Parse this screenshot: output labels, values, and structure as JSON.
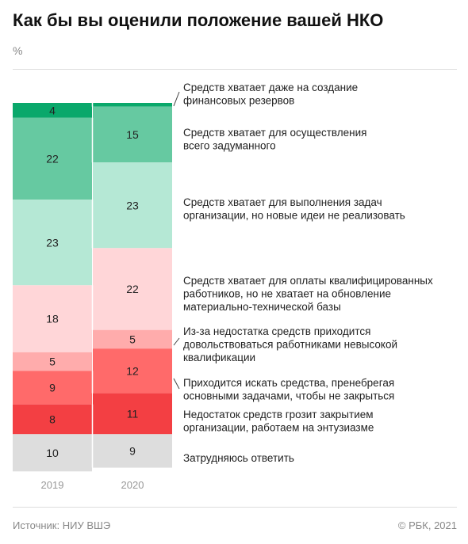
{
  "title": "Как бы вы оценили положение вашей НКО",
  "unit": "%",
  "source": "Источник: НИУ ВШЭ",
  "copyright": "© РБК, 2021",
  "colors": [
    "#0aa86b",
    "#66c9a1",
    "#b5e8d5",
    "#ffd6d8",
    "#ffacac",
    "#ff6a6a",
    "#f33f43",
    "#dddddd"
  ],
  "chart_data": {
    "type": "bar",
    "stacked": true,
    "categories": [
      "2019",
      "2020"
    ],
    "series": [
      {
        "name": "Средств хватает даже на создание финансовых резервов",
        "lines": [
          "Средств хватает даже на создание",
          "финансовых резервов"
        ],
        "values": [
          4,
          1
        ]
      },
      {
        "name": "Средств хватает для осуществления всего задуманного",
        "lines": [
          "Средств хватает для осуществления",
          "всего задуманного"
        ],
        "values": [
          22,
          15
        ]
      },
      {
        "name": "Средств хватает для выполнения задач организации, но новые идеи не реализовать",
        "lines": [
          "Средств хватает для выполнения задач",
          "организации, но новые идеи не реализовать"
        ],
        "values": [
          23,
          23
        ]
      },
      {
        "name": "Средств хватает для оплаты квалифицированных работников, но не хватает на обновление материально-технической базы",
        "lines": [
          "Средств хватает для оплаты квалифицированных",
          "работников, но не хватает на обновление",
          "материально-технической базы"
        ],
        "values": [
          18,
          22
        ]
      },
      {
        "name": "Из-за недостатка средств приходится довольствоваться работниками невысокой квалификации",
        "lines": [
          "Из-за недостатка средств приходится",
          "довольствоваться работниками невысокой",
          "квалификации"
        ],
        "values": [
          5,
          5
        ]
      },
      {
        "name": "Приходится искать средства, пренебрегая основными задачами, чтобы не закрыться",
        "lines": [
          "Приходится искать средства, пренебрегая",
          "основными задачами, чтобы не закрыться"
        ],
        "values": [
          9,
          12
        ]
      },
      {
        "name": "Недостаток средств грозит закрытием организации, работаем на энтузиазме",
        "lines": [
          "Недостаток средств грозит закрытием",
          "организации, работаем на энтузиазме"
        ],
        "values": [
          8,
          11
        ]
      },
      {
        "name": "Затрудняюсь ответить",
        "lines": [
          "Затрудняюсь ответить"
        ],
        "values": [
          10,
          9
        ]
      }
    ],
    "value_labels": [
      [
        "4",
        "22",
        "23",
        "18",
        "5",
        "9",
        "8",
        "10"
      ],
      [
        "",
        "15",
        "23",
        "22",
        "5",
        "12",
        "11",
        "9"
      ]
    ],
    "ylim": [
      0,
      100
    ],
    "legend_position": "right"
  }
}
